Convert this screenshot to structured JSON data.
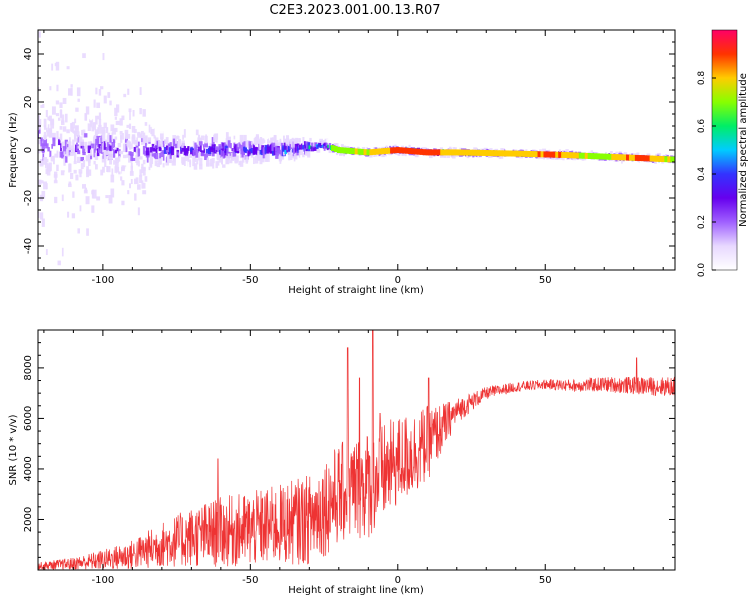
{
  "title": "C2E3.2023.001.00.13.R07",
  "chart_data": [
    {
      "type": "heatmap",
      "xlabel": "Height of straight line (km)",
      "ylabel": "Frequency (Hz)",
      "xlim": [
        -122,
        94
      ],
      "ylim": [
        -50,
        50
      ],
      "xticks": [
        -100,
        -50,
        0,
        50
      ],
      "xtick_labels": [
        "-100",
        "-50",
        "0",
        "50"
      ],
      "yticks": [
        -40,
        -20,
        0,
        20,
        40
      ],
      "ytick_labels": [
        "-40",
        "-20",
        "0",
        "20",
        "40"
      ],
      "colorbar": {
        "label": "Normalized spectral amplitude",
        "range": [
          0,
          1
        ],
        "ticks": [
          0.0,
          0.2,
          0.4,
          0.6,
          0.8
        ],
        "tick_labels": [
          "0.0",
          "0.2",
          "0.4",
          "0.6",
          "0.8"
        ],
        "colors": [
          "#ffffff",
          "#e8d8ff",
          "#a060ff",
          "#6600ee",
          "#3333ff",
          "#00ccff",
          "#00ee66",
          "#88ff00",
          "#ffcc00",
          "#ff3300",
          "#ff0066"
        ]
      },
      "ridge": {
        "height": [
          -120,
          -100,
          -80,
          -60,
          -40,
          -30,
          -25,
          -20,
          -10,
          0,
          10,
          20,
          40,
          55,
          65,
          75,
          85,
          94
        ],
        "frequency": [
          2,
          1,
          0,
          0,
          0,
          1,
          2,
          0,
          -1,
          0,
          -1,
          -1,
          -1.5,
          -2,
          -2.5,
          -3,
          -3.5,
          -4
        ],
        "amplitude": [
          0.25,
          0.3,
          0.35,
          0.4,
          0.45,
          0.55,
          0.6,
          0.65,
          0.7,
          0.85,
          0.85,
          0.75,
          0.75,
          0.8,
          0.65,
          0.75,
          0.85,
          0.65
        ],
        "spread_hz": [
          22,
          14,
          9,
          7,
          5,
          3,
          2.5,
          1.5,
          1.2,
          1,
          1,
          1,
          1,
          1,
          1.2,
          1.2,
          1.2,
          1.2
        ]
      },
      "grid": false
    },
    {
      "type": "line",
      "xlabel": "Height of straight line (km)",
      "ylabel": "SNR (10 * v/v)",
      "xlim": [
        -122,
        94
      ],
      "ylim": [
        0,
        9500
      ],
      "xticks": [
        -100,
        -50,
        0,
        50
      ],
      "xtick_labels": [
        "-100",
        "-50",
        "0",
        "50"
      ],
      "yticks": [
        2000,
        4000,
        6000,
        8000
      ],
      "ytick_labels": [
        "2000",
        "4000",
        "6000",
        "8000"
      ],
      "color": "#ee3333",
      "grid": false,
      "envelope": {
        "x": [
          -122,
          -110,
          -100,
          -90,
          -80,
          -70,
          -60,
          -50,
          -40,
          -30,
          -25,
          -20,
          -15,
          -10,
          -5,
          0,
          5,
          10,
          15,
          20,
          30,
          40,
          50,
          60,
          70,
          80,
          94
        ],
        "mean": [
          150,
          250,
          400,
          600,
          1000,
          1300,
          1500,
          1600,
          1800,
          2000,
          2500,
          3000,
          3200,
          3400,
          3800,
          4300,
          4600,
          5000,
          5600,
          6300,
          7000,
          7250,
          7350,
          7300,
          7350,
          7300,
          7250
        ],
        "noise": [
          150,
          250,
          400,
          600,
          900,
          1200,
          1400,
          1500,
          1600,
          1800,
          2000,
          2000,
          2100,
          2200,
          2000,
          1800,
          1700,
          1500,
          1000,
          500,
          250,
          200,
          200,
          250,
          300,
          350,
          400
        ]
      },
      "peaks": [
        {
          "x": -61,
          "y": 4400
        },
        {
          "x": -17,
          "y": 8800
        },
        {
          "x": -13,
          "y": 7600
        },
        {
          "x": -8.5,
          "y": 9500
        },
        {
          "x": -6,
          "y": 6200
        },
        {
          "x": 10.5,
          "y": 7600
        },
        {
          "x": 81,
          "y": 8400
        }
      ]
    }
  ]
}
